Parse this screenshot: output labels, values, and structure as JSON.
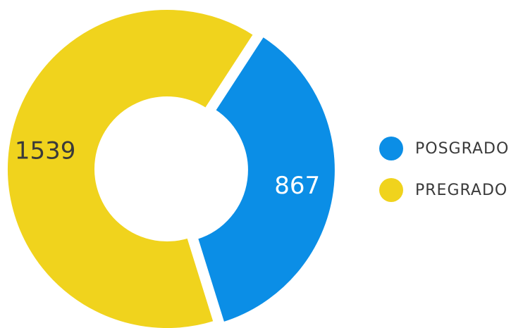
{
  "chart_data": {
    "type": "pie",
    "title": "",
    "categories": [
      "POSGRADO",
      "PREGRADO"
    ],
    "values": [
      867,
      1539
    ],
    "colors": [
      "#0b8ee6",
      "#f0d31d"
    ],
    "data_labels": [
      "867",
      "1539"
    ],
    "legend_placement": "right",
    "donut": true
  },
  "legend": {
    "items": [
      {
        "label": "POSGRADO",
        "color": "#0b8ee6"
      },
      {
        "label": "PREGRADO",
        "color": "#f0d31d"
      }
    ]
  }
}
